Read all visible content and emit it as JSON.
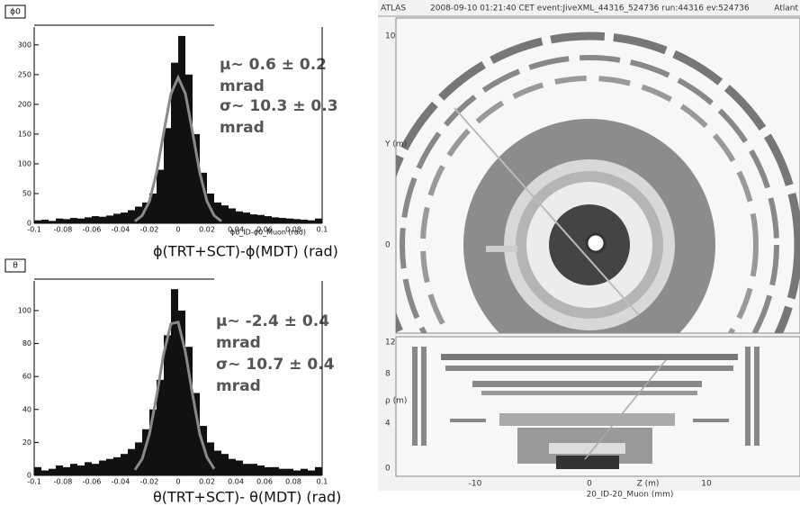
{
  "chart_data": [
    {
      "type": "histogram",
      "title": "ϕ0",
      "x_label": "ϕ0_ID-ϕ0_Muon (rad)",
      "caption": "ϕ(TRT+SCT)-ϕ(MDT) (rad)",
      "annotations": [
        "μ~ 0.6 ± 0.2",
        "mrad",
        "σ~ 10.3 ± 0.3",
        "mrad"
      ],
      "color": "#111111",
      "bins": [
        -0.1,
        -0.095,
        -0.09,
        -0.085,
        -0.08,
        -0.075,
        -0.07,
        -0.065,
        -0.06,
        -0.055,
        -0.05,
        -0.045,
        -0.04,
        -0.035,
        -0.03,
        -0.025,
        -0.02,
        -0.015,
        -0.01,
        -0.005,
        0,
        0.005,
        0.01,
        0.015,
        0.02,
        0.025,
        0.03,
        0.035,
        0.04,
        0.045,
        0.05,
        0.055,
        0.06,
        0.065,
        0.07,
        0.075,
        0.08,
        0.085,
        0.09,
        0.095,
        0.1
      ],
      "values": [
        5,
        6,
        4,
        8,
        7,
        9,
        8,
        10,
        12,
        11,
        13,
        16,
        18,
        22,
        28,
        35,
        50,
        90,
        160,
        270,
        315,
        250,
        150,
        85,
        50,
        35,
        30,
        25,
        20,
        18,
        15,
        14,
        12,
        10,
        9,
        8,
        7,
        6,
        5,
        8
      ],
      "fit": {
        "color": "#8a8a8a",
        "x": [
          -0.03,
          -0.025,
          -0.02,
          -0.015,
          -0.01,
          -0.005,
          0,
          0.005,
          0.01,
          0.015,
          0.02,
          0.025,
          0.03
        ],
        "values": [
          3.5,
          13,
          37,
          85,
          153,
          218,
          245,
          218,
          153,
          85,
          37,
          13,
          3.5
        ]
      },
      "xlim": [
        -0.1,
        0.1
      ],
      "xticks": [
        -0.1,
        -0.08,
        -0.06,
        -0.04,
        -0.02,
        0,
        0.02,
        0.04,
        0.06,
        0.08,
        0.1
      ],
      "ylim": [
        0,
        330
      ],
      "yticks": [
        0,
        50,
        100,
        150,
        200,
        250,
        300
      ]
    },
    {
      "type": "histogram",
      "title": "θ",
      "caption": "θ(TRT+SCT)- θ(MDT) (rad)",
      "annotations": [
        "μ~ -2.4 ± 0.4",
        "mrad",
        "σ~ 10.7 ± 0.4",
        "mrad"
      ],
      "color": "#111111",
      "bins": [
        -0.1,
        -0.095,
        -0.09,
        -0.085,
        -0.08,
        -0.075,
        -0.07,
        -0.065,
        -0.06,
        -0.055,
        -0.05,
        -0.045,
        -0.04,
        -0.035,
        -0.03,
        -0.025,
        -0.02,
        -0.015,
        -0.01,
        -0.005,
        0,
        0.005,
        0.01,
        0.015,
        0.02,
        0.025,
        0.03,
        0.035,
        0.04,
        0.045,
        0.05,
        0.055,
        0.06,
        0.065,
        0.07,
        0.075,
        0.08,
        0.085,
        0.09,
        0.095,
        0.1
      ],
      "values": [
        5,
        3,
        4,
        6,
        5,
        7,
        6,
        8,
        7,
        9,
        10,
        11,
        13,
        16,
        20,
        28,
        40,
        58,
        85,
        113,
        100,
        78,
        50,
        30,
        20,
        15,
        13,
        10,
        9,
        7,
        7,
        6,
        5,
        5,
        4,
        4,
        3,
        4,
        3,
        5
      ],
      "fit": {
        "color": "#8a8a8a",
        "x": [
          -0.03,
          -0.025,
          -0.02,
          -0.015,
          -0.01,
          -0.005,
          0,
          0.005,
          0.01,
          0.015,
          0.02,
          0.025
        ],
        "values": [
          3.4,
          10,
          25,
          48,
          74,
          92,
          93,
          75,
          49,
          25,
          11,
          4
        ]
      },
      "xlim": [
        -0.1,
        0.1
      ],
      "xticks": [
        -0.1,
        -0.08,
        -0.06,
        -0.04,
        -0.02,
        0,
        0.02,
        0.04,
        0.06,
        0.08,
        0.1
      ],
      "ylim": [
        0,
        118
      ],
      "yticks": [
        0,
        20,
        40,
        60,
        80,
        100
      ]
    }
  ],
  "event_display": {
    "header": [
      "ATLAS",
      "2008-09-10 01:21:40 CET event:JiveXML_44316_524736 run:44316 ev:524736",
      "Atlant"
    ],
    "top_view": {
      "axis_label": "Y (m)",
      "ticks": [
        "10",
        "0"
      ]
    },
    "side_view": {
      "axis_label": "ρ (m)",
      "ticks": [
        "12",
        "8",
        "4",
        "0"
      ],
      "x_ticks": [
        "-10",
        "0",
        "10"
      ],
      "x_axis_label": "Z (m)",
      "footer": "20_ID-20_Muon (mm)"
    }
  }
}
